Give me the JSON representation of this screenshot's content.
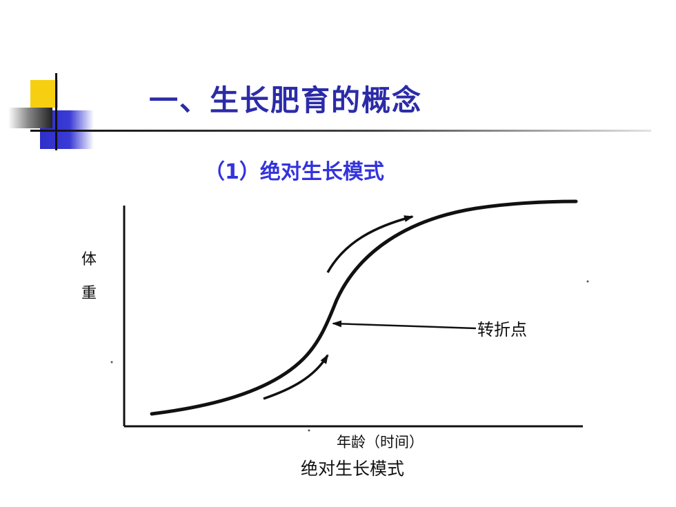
{
  "slide": {
    "title": "一、生长肥育的概念",
    "subtitle": "（1）绝对生长模式"
  },
  "diagram": {
    "y_axis_label_chars": [
      "体",
      "重"
    ],
    "x_axis_label": "年龄（时间）",
    "inflection_label": "转折点",
    "caption": "绝对生长模式"
  },
  "colors": {
    "title": "#2b2ba8",
    "subtitle": "#3333dd",
    "accent_yellow": "#f6cf10",
    "accent_blue": "#2e2ec9"
  }
}
